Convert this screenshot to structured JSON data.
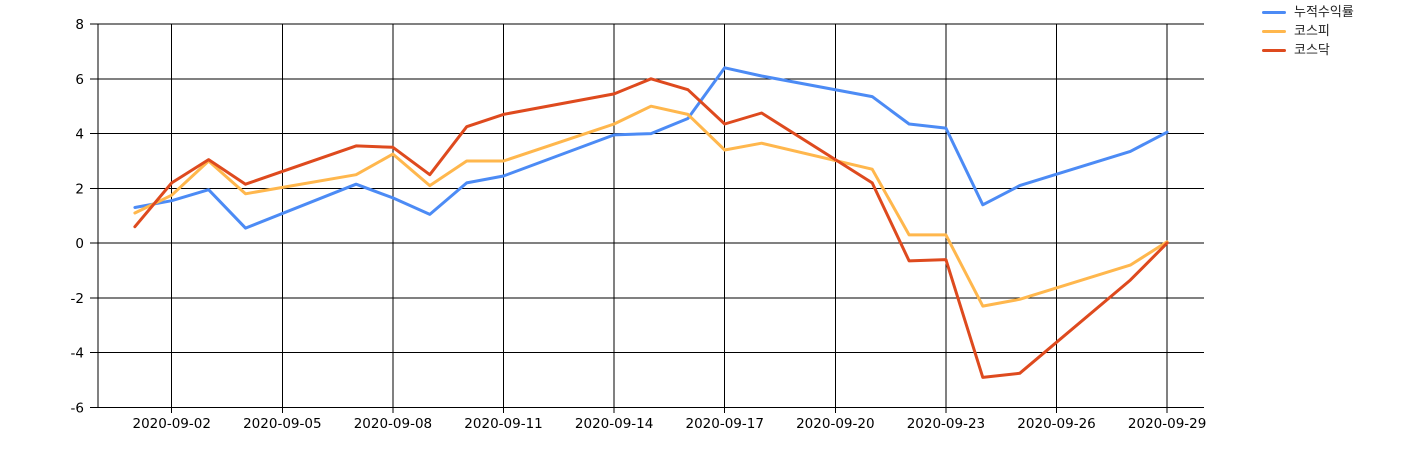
{
  "chart_data": {
    "type": "line",
    "title": "",
    "xlabel": "",
    "ylabel": "",
    "x": [
      "2020-09-01",
      "2020-09-02",
      "2020-09-03",
      "2020-09-04",
      "2020-09-07",
      "2020-09-08",
      "2020-09-09",
      "2020-09-10",
      "2020-09-11",
      "2020-09-14",
      "2020-09-15",
      "2020-09-16",
      "2020-09-17",
      "2020-09-18",
      "2020-09-21",
      "2020-09-22",
      "2020-09-23",
      "2020-09-24",
      "2020-09-25",
      "2020-09-28",
      "2020-09-29"
    ],
    "series": [
      {
        "name": "누적수익률",
        "color": "#4C8BF5",
        "values": [
          1.3,
          1.55,
          1.95,
          0.55,
          2.15,
          1.65,
          1.05,
          2.2,
          2.45,
          3.95,
          4.0,
          4.55,
          6.4,
          6.1,
          5.35,
          4.35,
          4.2,
          1.4,
          2.1,
          3.35,
          4.05
        ]
      },
      {
        "name": "코스피",
        "color": "#FFB74D",
        "values": [
          1.1,
          1.75,
          3.0,
          1.8,
          2.5,
          3.25,
          2.1,
          3.0,
          3.0,
          4.35,
          5.0,
          4.7,
          3.4,
          3.65,
          2.7,
          0.3,
          0.3,
          -2.3,
          -2.05,
          -0.8,
          0.05
        ]
      },
      {
        "name": "코스닥",
        "color": "#DE4A1E",
        "values": [
          0.6,
          2.2,
          3.05,
          2.15,
          3.55,
          3.5,
          2.5,
          4.25,
          4.7,
          5.45,
          6.0,
          5.6,
          4.35,
          4.75,
          2.2,
          -0.65,
          -0.6,
          -4.9,
          -4.75,
          -1.35,
          0.0
        ]
      }
    ],
    "ylim": [
      -6,
      8
    ],
    "y_ticks": [
      "8",
      "6",
      "4",
      "2",
      "0",
      "-2",
      "-4",
      "-6"
    ],
    "x_ticks": [
      "2020-09-02",
      "2020-09-05",
      "2020-09-08",
      "2020-09-11",
      "2020-09-14",
      "2020-09-17",
      "2020-09-20",
      "2020-09-23",
      "2020-09-26",
      "2020-09-29"
    ],
    "x_range": [
      "2020-08-31",
      "2020-09-30"
    ],
    "grid": true,
    "grid_color": "#000000",
    "axis_text_color": "#000000",
    "legend_position": "right"
  }
}
